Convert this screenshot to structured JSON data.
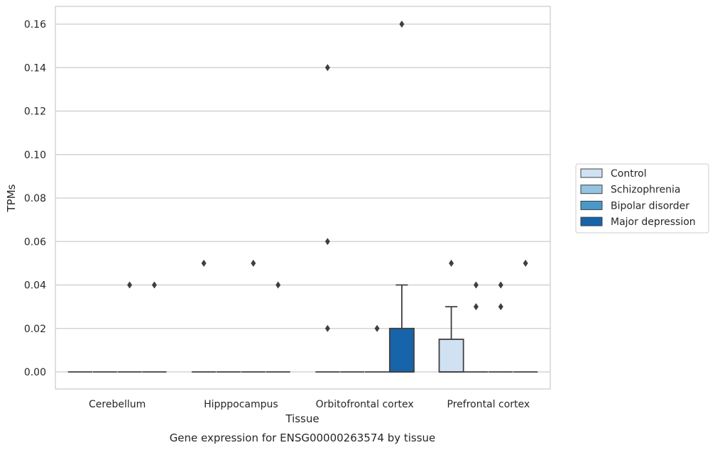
{
  "chart_data": {
    "type": "box",
    "caption": "Gene expression for ENSG00000263574 by tissue",
    "xlabel": "Tissue",
    "ylabel": "TPMs",
    "ylim": [
      -0.008,
      0.168
    ],
    "yticks": [
      0.0,
      0.02,
      0.04,
      0.06,
      0.08,
      0.1,
      0.12,
      0.14,
      0.16
    ],
    "ytick_labels": [
      "0.00",
      "0.02",
      "0.04",
      "0.06",
      "0.08",
      "0.10",
      "0.12",
      "0.14",
      "0.16"
    ],
    "categories": [
      "Cerebellum",
      "Hipppocampus",
      "Orbitofrontal cortex",
      "Prefrontal cortex"
    ],
    "grid": "horizontal",
    "legend_position": "right",
    "series": [
      {
        "name": "Control",
        "color": "#d0e1f2",
        "boxes": [
          {
            "q1": 0,
            "median": 0,
            "q3": 0,
            "whislo": 0,
            "whishi": 0,
            "fliers": []
          },
          {
            "q1": 0,
            "median": 0,
            "q3": 0,
            "whislo": 0,
            "whishi": 0,
            "fliers": [
              0.05
            ]
          },
          {
            "q1": 0,
            "median": 0,
            "q3": 0,
            "whislo": 0,
            "whishi": 0,
            "fliers": [
              0.14,
              0.06,
              0.02
            ]
          },
          {
            "q1": 0,
            "median": 0,
            "q3": 0.015,
            "whislo": 0,
            "whishi": 0.03,
            "fliers": [
              0.05
            ]
          }
        ]
      },
      {
        "name": "Schizophrenia",
        "color": "#94c4df",
        "boxes": [
          {
            "q1": 0,
            "median": 0,
            "q3": 0,
            "whislo": 0,
            "whishi": 0,
            "fliers": []
          },
          {
            "q1": 0,
            "median": 0,
            "q3": 0,
            "whislo": 0,
            "whishi": 0,
            "fliers": []
          },
          {
            "q1": 0,
            "median": 0,
            "q3": 0,
            "whislo": 0,
            "whishi": 0,
            "fliers": []
          },
          {
            "q1": 0,
            "median": 0,
            "q3": 0,
            "whislo": 0,
            "whishi": 0,
            "fliers": [
              0.04,
              0.03
            ]
          }
        ]
      },
      {
        "name": "Bipolar disorder",
        "color": "#4a98c9",
        "boxes": [
          {
            "q1": 0,
            "median": 0,
            "q3": 0,
            "whislo": 0,
            "whishi": 0,
            "fliers": [
              0.04
            ]
          },
          {
            "q1": 0,
            "median": 0,
            "q3": 0,
            "whislo": 0,
            "whishi": 0,
            "fliers": [
              0.05
            ]
          },
          {
            "q1": 0,
            "median": 0,
            "q3": 0,
            "whislo": 0,
            "whishi": 0,
            "fliers": [
              0.02
            ]
          },
          {
            "q1": 0,
            "median": 0,
            "q3": 0,
            "whislo": 0,
            "whishi": 0,
            "fliers": [
              0.04,
              0.03
            ]
          }
        ]
      },
      {
        "name": "Major depression",
        "color": "#1764ab",
        "boxes": [
          {
            "q1": 0,
            "median": 0,
            "q3": 0,
            "whislo": 0,
            "whishi": 0,
            "fliers": [
              0.04
            ]
          },
          {
            "q1": 0,
            "median": 0,
            "q3": 0,
            "whislo": 0,
            "whishi": 0,
            "fliers": [
              0.04
            ]
          },
          {
            "q1": 0,
            "median": 0,
            "q3": 0.02,
            "whislo": 0,
            "whishi": 0.04,
            "fliers": [
              0.16
            ]
          },
          {
            "q1": 0,
            "median": 0,
            "q3": 0,
            "whislo": 0,
            "whishi": 0,
            "fliers": [
              0.05
            ]
          }
        ]
      }
    ]
  }
}
